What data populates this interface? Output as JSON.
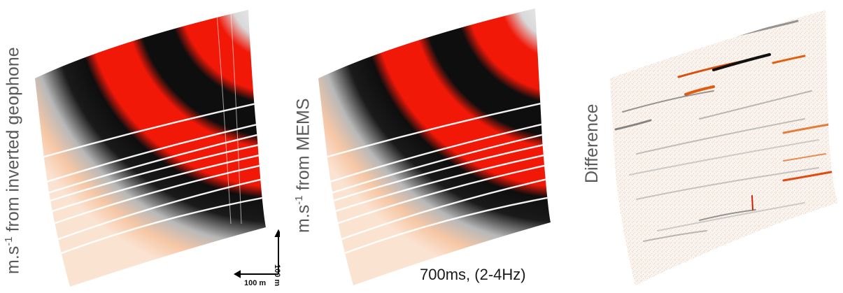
{
  "panels": [
    {
      "label_prefix": "m.s",
      "label_exp": "-1",
      "label_suffix": " from inverted geophone"
    },
    {
      "label_prefix": "m.s",
      "label_exp": "-1",
      "label_suffix": " from MEMS"
    },
    {
      "label": "Difference"
    }
  ],
  "scale_bar": {
    "horizontal": "100 m",
    "vertical": "100 m"
  },
  "caption": "700ms, (2-4Hz)",
  "colors": {
    "red": "#f21808",
    "black": "#0e0e0e",
    "orange_light": "#f6c7a6",
    "gray": "#9a9a9a"
  }
}
